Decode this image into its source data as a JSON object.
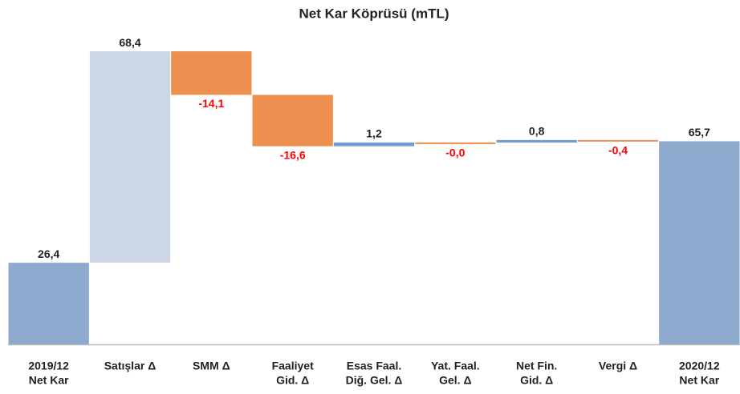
{
  "chart_data": {
    "type": "waterfall",
    "title": "Net Kar Köprüsü (mTL)",
    "categories": [
      [
        "2019/12",
        "Net Kar"
      ],
      [
        "Satışlar Δ"
      ],
      [
        "SMM Δ"
      ],
      [
        "Faaliyet",
        "Gid. Δ"
      ],
      [
        "Esas  Faal.",
        "Diğ. Gel. Δ"
      ],
      [
        "Yat. Faal.",
        "Gel. Δ"
      ],
      [
        "Net Fin.",
        "Gid. Δ"
      ],
      [
        "Vergi Δ"
      ],
      [
        "2020/12",
        "Net Kar"
      ]
    ],
    "values": [
      26.4,
      68.4,
      -14.1,
      -16.6,
      1.2,
      -0.0,
      0.8,
      -0.4,
      65.7
    ],
    "value_labels": [
      "26,4",
      "68,4",
      "-14,1",
      "-16,6",
      "1,2",
      "-0,0",
      "0,8",
      "-0,4",
      "65,7"
    ],
    "measure": [
      "absolute",
      "relative",
      "relative",
      "relative",
      "relative",
      "relative",
      "relative",
      "relative",
      "absolute"
    ],
    "colors": [
      "#8eaacf",
      "#cdd6e4",
      "#ee8f4f",
      "#ee8f4f",
      "#6f9bd1",
      "#ee8f4f",
      "#6f9bd1",
      "#ee8f4f",
      "#8eaacf"
    ],
    "negative_label_color": "#ff0000",
    "ylim": [
      0,
      100
    ]
  }
}
